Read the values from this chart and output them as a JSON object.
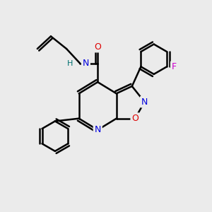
{
  "background_color": "#ebebeb",
  "atom_colors": {
    "C": "#000000",
    "N": "#0000dd",
    "O": "#dd0000",
    "F": "#cc00cc",
    "H": "#007070"
  },
  "bond_color": "#000000",
  "bond_width": 1.8,
  "figsize": [
    3.0,
    3.0
  ],
  "dpi": 100
}
